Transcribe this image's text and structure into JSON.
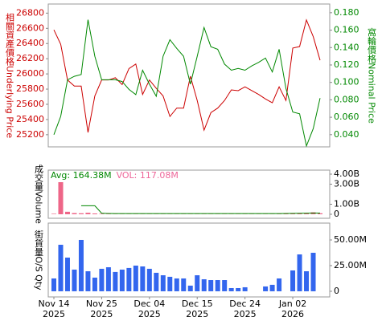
{
  "chart_data": [
    {
      "type": "line",
      "ylabel": "相關資產價格Underlying Price",
      "y2label": "窩輪價格Nominal Price",
      "ylim": [
        25040,
        26920
      ],
      "yticks": [
        25200,
        25400,
        25600,
        25800,
        26000,
        26200,
        26400,
        26600,
        26800
      ],
      "y2lim": [
        0.026,
        0.19
      ],
      "y2ticks": [
        {
          "value": 0.04,
          "label": "0.040"
        },
        {
          "value": 0.06,
          "label": "0.060"
        },
        {
          "value": 0.08,
          "label": "0.080"
        },
        {
          "value": 0.1,
          "label": "0.100"
        },
        {
          "value": 0.12,
          "label": "0.120"
        },
        {
          "value": 0.14,
          "label": "0.140"
        },
        {
          "value": 0.16,
          "label": "0.160"
        },
        {
          "value": 0.18,
          "label": "0.180"
        }
      ],
      "series": [
        {
          "color": "#cc0000",
          "values": [
            26580,
            26390,
            25920,
            25840,
            25840,
            25230,
            25710,
            25920,
            25920,
            25950,
            25860,
            26070,
            26130,
            25730,
            25920,
            25810,
            25710,
            25440,
            25550,
            25550,
            25970,
            25650,
            25260,
            25490,
            25550,
            25650,
            25790,
            25780,
            25830,
            25780,
            25730,
            25670,
            25620,
            25830,
            25650,
            26340,
            26360,
            26710,
            26490,
            26180
          ]
        },
        {
          "color": "#008800",
          "axis": "y2",
          "values": [
            0.04,
            0.061,
            0.103,
            0.107,
            0.109,
            0.172,
            0.13,
            0.103,
            0.103,
            0.103,
            0.101,
            0.092,
            0.086,
            0.114,
            0.098,
            0.084,
            0.13,
            0.149,
            0.139,
            0.13,
            0.098,
            0.13,
            0.163,
            0.141,
            0.138,
            0.121,
            0.114,
            0.116,
            0.114,
            0.119,
            0.123,
            0.128,
            0.112,
            0.138,
            0.093,
            0.066,
            0.064,
            0.027,
            0.047,
            0.082
          ]
        }
      ]
    },
    {
      "type": "volume",
      "ylabel": "成交量Volume",
      "ylim": [
        -400000000,
        4400000000
      ],
      "yticks": [
        0,
        {
          "value": 1000000000,
          "label": "1.00B"
        },
        {
          "value": 3000000000,
          "label": "3.00B"
        },
        {
          "value": 4000000000,
          "label": "4.00B"
        }
      ],
      "annotations": [
        {
          "text": "Avg: 164.38M",
          "color": "#008800"
        },
        {
          "text": "VOL: 117.08M",
          "color": "#ee6699"
        }
      ],
      "series": [
        {
          "type": "bar",
          "color": "#ee6688",
          "values": [
            50000000,
            3200000000,
            250000000,
            120000000,
            100000000,
            150000000,
            80000000,
            50000000,
            30000000,
            20000000,
            20000000,
            20000000,
            20000000,
            20000000,
            20000000,
            20000000,
            20000000,
            20000000,
            20000000,
            20000000,
            20000000,
            20000000,
            20000000,
            20000000,
            20000000,
            20000000,
            20000000,
            20000000,
            20000000,
            20000000,
            20000000,
            20000000,
            20000000,
            30000000,
            50000000,
            80000000,
            100000000,
            120000000,
            200000000,
            100000000
          ]
        },
        {
          "type": "line",
          "color": "#008800",
          "values": [
            null,
            null,
            null,
            null,
            850000000,
            850000000,
            850000000,
            100000000,
            80000000,
            70000000,
            70000000,
            70000000,
            70000000,
            70000000,
            70000000,
            70000000,
            70000000,
            70000000,
            70000000,
            70000000,
            70000000,
            70000000,
            70000000,
            70000000,
            70000000,
            70000000,
            70000000,
            70000000,
            70000000,
            70000000,
            70000000,
            70000000,
            70000000,
            70000000,
            80000000,
            90000000,
            100000000,
            110000000,
            120000000,
            120000000
          ]
        }
      ]
    },
    {
      "type": "bar",
      "ylabel": "街貨量O/S Qty",
      "color": "#3366ee",
      "ylim": [
        -5500000,
        66400000
      ],
      "yticks": [
        0,
        {
          "value": 25000000,
          "label": "25.00M"
        },
        {
          "value": 50000000,
          "label": "50.00M"
        }
      ],
      "categories": [
        "Nov 14\n2025",
        null,
        null,
        null,
        null,
        null,
        null,
        "Nov 25\n2025",
        null,
        null,
        null,
        null,
        null,
        null,
        "Dec 04\n2025",
        null,
        null,
        null,
        null,
        null,
        null,
        "Dec 15\n2025",
        null,
        null,
        null,
        null,
        null,
        null,
        "Dec 24\n2025",
        null,
        null,
        null,
        null,
        null,
        null,
        "Jan 02\n2026",
        null,
        null,
        null,
        null
      ],
      "values": [
        12500000,
        45300000,
        32800000,
        21100000,
        50000000,
        19500000,
        13300000,
        21900000,
        23400000,
        18800000,
        21100000,
        22700000,
        25000000,
        24200000,
        21900000,
        18000000,
        15600000,
        14100000,
        12500000,
        12500000,
        5500000,
        15600000,
        11700000,
        10900000,
        10900000,
        10900000,
        3100000,
        3100000,
        3900000,
        0,
        0,
        4700000,
        6300000,
        12500000,
        0,
        20300000,
        35900000,
        19500000,
        37500000,
        0
      ]
    }
  ]
}
